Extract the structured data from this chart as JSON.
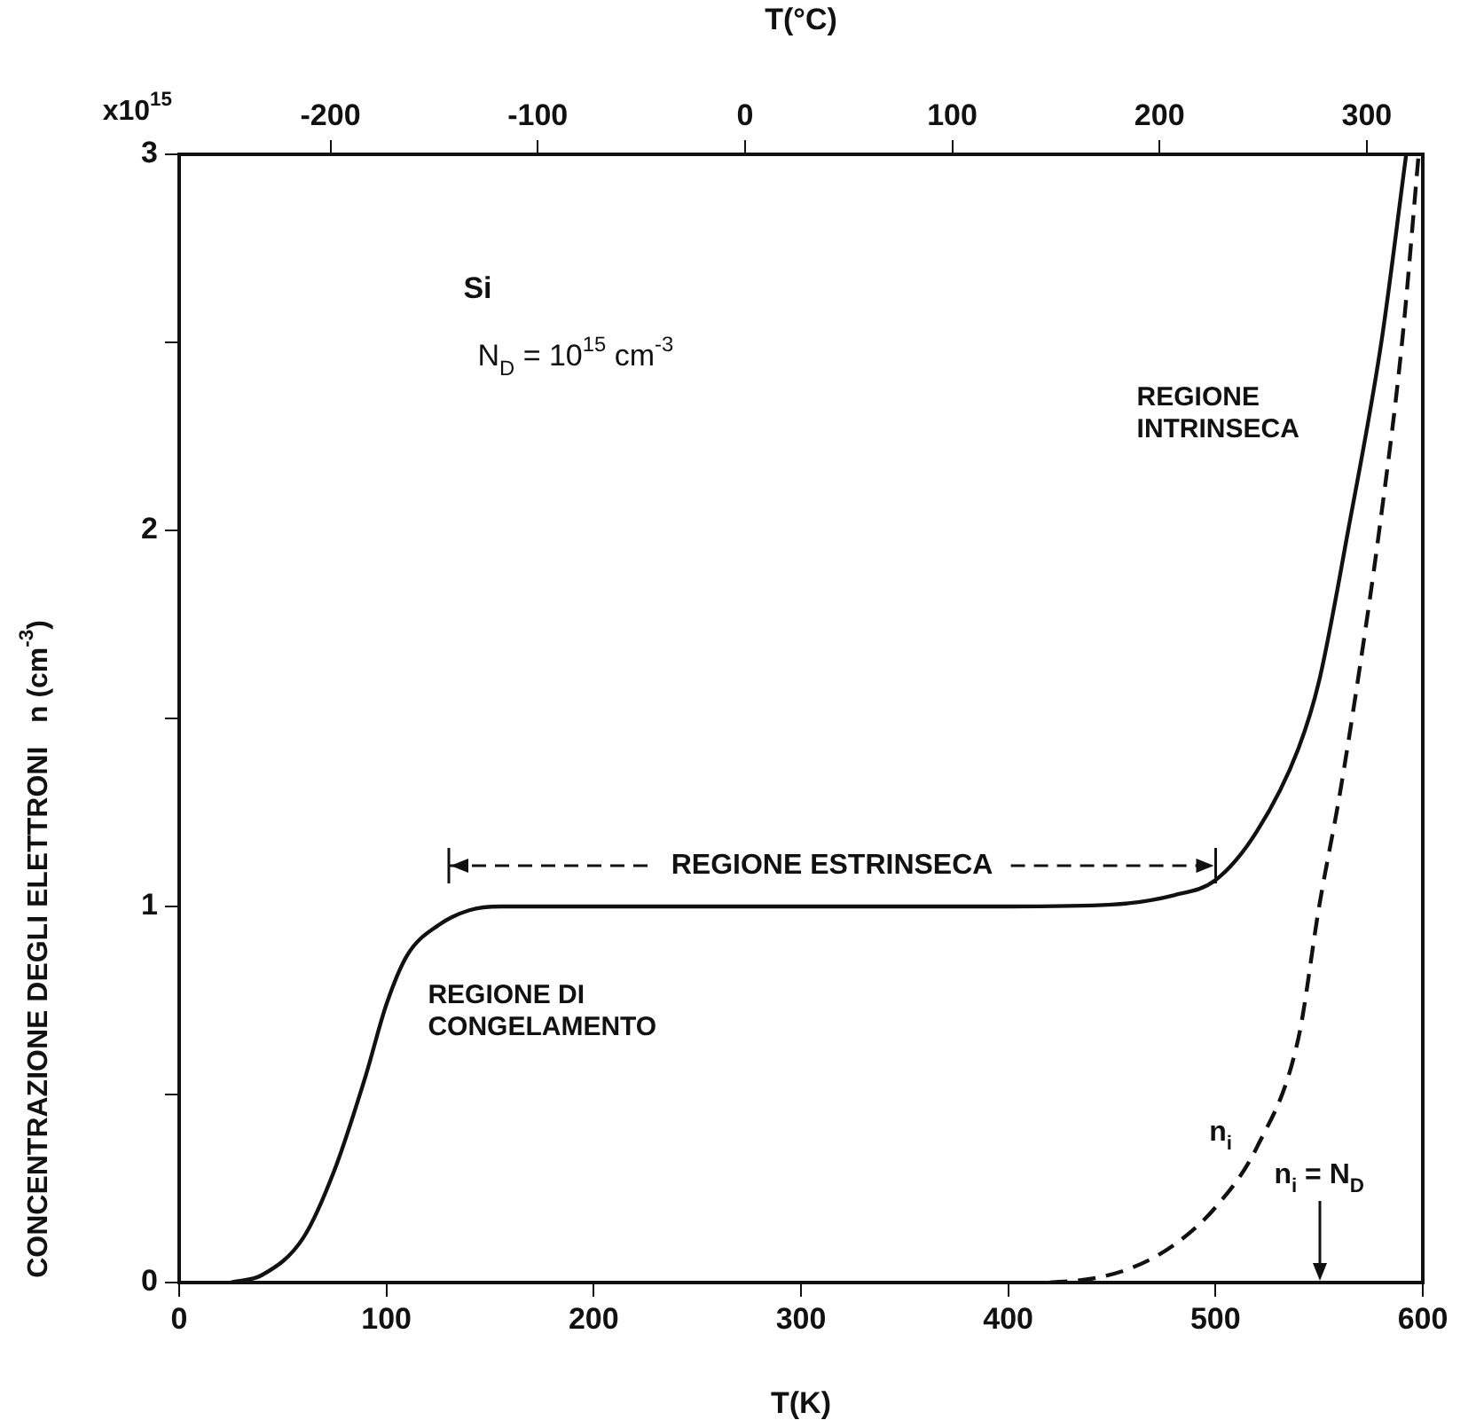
{
  "chart_data": {
    "type": "line",
    "xlabel": "T(K)",
    "x2label": "T(°C)",
    "ylabel": "CONCENTRAZIONE DEGLI ELETTRONI   n (cm$^{-3}$)",
    "xlim": [
      0,
      600
    ],
    "xticks": [
      0,
      100,
      200,
      300,
      400,
      500,
      600
    ],
    "x2lim": [
      -273,
      327
    ],
    "x2ticks": [
      -200,
      -100,
      0,
      100,
      200,
      300
    ],
    "ylim": [
      0,
      3
    ],
    "yticks": [
      {
        "value": 0,
        "label": "0"
      },
      {
        "value": 0.5,
        "label": null
      },
      {
        "value": 1,
        "label": "1"
      },
      {
        "value": 1.5,
        "label": null
      },
      {
        "value": 2,
        "label": "2"
      },
      {
        "value": 2.5,
        "label": null
      },
      {
        "value": 3,
        "label": "3"
      }
    ],
    "grid": false,
    "legend": false,
    "marker": "none",
    "series": [
      {
        "color": "#111111",
        "line_style": "solid",
        "x": [
          25,
          40,
          60,
          75,
          90,
          100,
          110,
          125,
          140,
          155,
          200,
          300,
          400,
          450,
          480,
          500,
          520,
          540,
          550,
          564,
          580,
          592
        ],
        "values": [
          0,
          0.02,
          0.12,
          0.3,
          0.55,
          0.74,
          0.87,
          0.95,
          0.99,
          1.0,
          1.0,
          1.0,
          1.0,
          1.005,
          1.03,
          1.07,
          1.2,
          1.42,
          1.6,
          2.0,
          2.5,
          3.0
        ]
      },
      {
        "name": "n$_{i}$",
        "color": "#111111",
        "line_style": "dashed",
        "x": [
          420,
          440,
          460,
          480,
          500,
          520,
          540,
          550,
          560,
          570,
          579,
          590,
          598
        ],
        "values": [
          0,
          0.01,
          0.04,
          0.1,
          0.2,
          0.36,
          0.65,
          1.0,
          1.3,
          1.65,
          2.0,
          2.5,
          3.0
        ]
      }
    ],
    "annotations": [
      "Si",
      "N$_{D}$ = 10$^{15}$ cm$^{-3}$",
      "REGIONE INTRINSECA",
      "REGIONE DI CONGELAMENTO",
      {
        "text": "REGIONE ESTRINSECA",
        "x": 500,
        "y": 1.07
      },
      "n$_{i}$ = N$_{D}$",
      "x10$^{15}$"
    ]
  }
}
